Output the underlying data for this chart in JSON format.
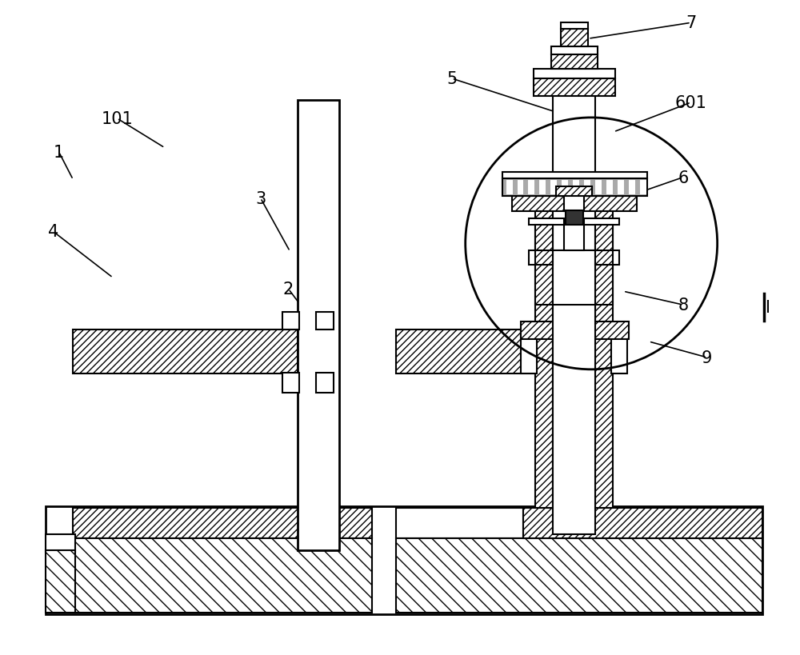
{
  "bg_color": "#ffffff",
  "line_color": "#000000",
  "lw": 1.5,
  "tlw": 2.0,
  "figsize": [
    10.0,
    8.2
  ],
  "dpi": 100,
  "xlim": [
    0,
    10
  ],
  "ylim": [
    0,
    8.2
  ]
}
